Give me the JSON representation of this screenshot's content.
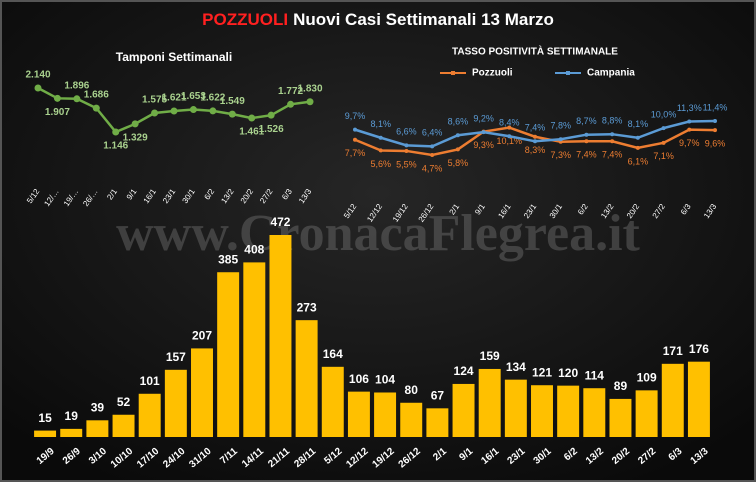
{
  "header": {
    "highlight": "POZZUOLI",
    "title": "Nuovi Casi Settimanali  13 Marzo"
  },
  "watermark": "www.CronacaFlegrea.it",
  "chart_data": [
    {
      "type": "line",
      "title": "Tamponi Settimanali",
      "categories": [
        "5/12",
        "12/…",
        "19/…",
        "26/…",
        "2/1",
        "9/1",
        "16/1",
        "23/1",
        "30/1",
        "6/2",
        "13/2",
        "20/2",
        "27/2",
        "6/3",
        "13/3"
      ],
      "series": [
        {
          "name": null,
          "color": "#70ad47",
          "values": [
            2140,
            1907,
            1896,
            1686,
            1146,
            1329,
            1575,
            1621,
            1653,
            1622,
            1549,
            1461,
            1526,
            1772,
            1830
          ],
          "value_labels": [
            "2.140",
            "1.907",
            "1.896",
            "1.686",
            "1.146",
            "1.329",
            "1.575",
            "1.621",
            "1.653",
            "1.622",
            "1.549",
            "1.461",
            "1.526",
            "1.772",
            "1.830"
          ],
          "label_color": "#a9d18e"
        }
      ]
    },
    {
      "type": "line",
      "title": "TASSO POSITIVITÀ SETTIMANALE",
      "categories": [
        "5/12",
        "12/12",
        "19/12",
        "26/12",
        "2/1",
        "9/1",
        "16/1",
        "23/1",
        "30/1",
        "6/2",
        "13/2",
        "20/2",
        "27/2",
        "6/3",
        "13/3"
      ],
      "series": [
        {
          "name": "Pozzuoli",
          "color": "#ed7d31",
          "values": [
            7.7,
            5.6,
            5.5,
            4.7,
            5.8,
            9.3,
            10.1,
            8.3,
            7.3,
            7.4,
            7.4,
            6.1,
            7.1,
            9.7,
            9.6
          ],
          "value_labels": [
            "7,7%",
            "5,6%",
            "5,5%",
            "4,7%",
            "5,8%",
            "9,3%",
            "10,1%",
            "8,3%",
            "7,3%",
            "7,4%",
            "7,4%",
            "6,1%",
            "7,1%",
            "9,7%",
            "9,6%"
          ]
        },
        {
          "name": "Campania",
          "color": "#5b9bd5",
          "values": [
            9.7,
            8.1,
            6.6,
            6.4,
            8.6,
            9.2,
            8.4,
            7.4,
            7.8,
            8.7,
            8.8,
            8.1,
            10.0,
            11.3,
            11.4
          ],
          "value_labels": [
            "9,7%",
            "8,1%",
            "6,6%",
            "6,4%",
            "8,6%",
            "9,2%",
            "8,4%",
            "7,4%",
            "7,8%",
            "8,7%",
            "8,8%",
            "8,1%",
            "10,0%",
            "11,3%",
            "11,4%"
          ]
        }
      ]
    },
    {
      "type": "bar",
      "color": "#ffc000",
      "categories": [
        "19/9",
        "26/9",
        "3/10",
        "10/10",
        "17/10",
        "24/10",
        "31/10",
        "7/11",
        "14/11",
        "21/11",
        "28/11",
        "5/12",
        "12/12",
        "19/12",
        "26/12",
        "2/1",
        "9/1",
        "16/1",
        "23/1",
        "30/1",
        "6/2",
        "13/2",
        "20/2",
        "27/2",
        "6/3",
        "13/3"
      ],
      "values": [
        15,
        19,
        39,
        52,
        101,
        157,
        207,
        385,
        408,
        472,
        273,
        164,
        106,
        104,
        80,
        67,
        124,
        159,
        134,
        121,
        120,
        114,
        89,
        109,
        171,
        176
      ]
    }
  ]
}
